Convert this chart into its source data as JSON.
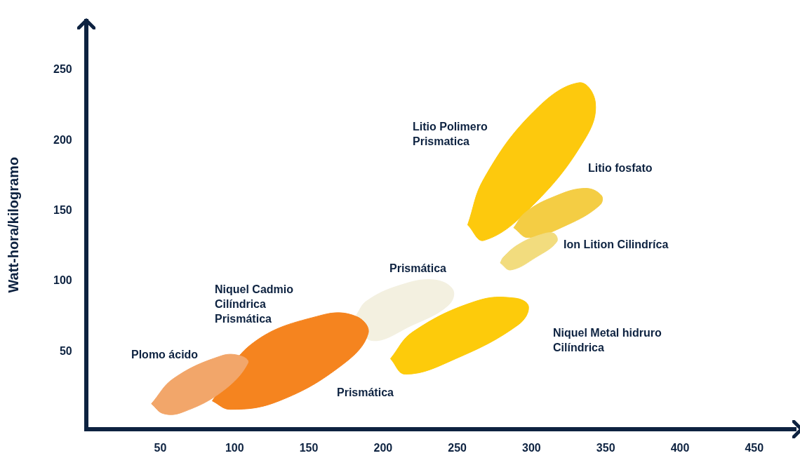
{
  "chart_data": {
    "type": "area",
    "ylabel": "Watt-hora/kilogramo",
    "xlim": [
      0,
      478
    ],
    "ylim": [
      -5,
      285
    ],
    "xticks": [
      50,
      100,
      150,
      200,
      250,
      300,
      350,
      400,
      450
    ],
    "yticks": [
      50,
      100,
      150,
      200,
      250
    ],
    "grid": false,
    "legend": false,
    "marker": "none",
    "series": [
      {
        "color": "#f3f0e0",
        "x": [
          182,
          192,
          220,
          244,
          247,
          234,
          211,
          189,
          182
        ],
        "values": [
          76,
          58,
          69,
          83,
          94,
          101,
          97,
          86,
          76
        ]
      },
      {
        "color": "#f5841f",
        "x": [
          85,
          97,
          130,
          173,
          190,
          182,
          159,
          111,
          85
        ],
        "values": [
          15,
          9,
          15,
          41,
          63,
          75,
          76,
          55,
          15
        ]
      },
      {
        "color": "#f2a66a",
        "x": [
          44,
          52,
          65,
          92,
          109,
          104,
          91,
          59,
          44
        ],
        "values": [
          13,
          6,
          7,
          22,
          42,
          47,
          47,
          31,
          13
        ]
      },
      {
        "color": "#fdcb0b",
        "x": [
          205,
          215,
          249,
          291,
          298,
          289,
          263,
          220,
          205
        ],
        "values": [
          45,
          34,
          45,
          69,
          82,
          88,
          86,
          64,
          45
        ]
      },
      {
        "color": "#fdc90d",
        "x": [
          257,
          268,
          301,
          336,
          343,
          332,
          301,
          268,
          257
        ],
        "values": [
          140,
          129,
          154,
          201,
          227,
          241,
          220,
          173,
          140
        ]
      },
      {
        "color": "#f4cd44",
        "x": [
          288,
          298,
          324,
          346,
          347,
          336,
          315,
          296,
          288
        ],
        "values": [
          138,
          131,
          140,
          154,
          161,
          166,
          160,
          149,
          138
        ]
      },
      {
        "color": "#f2dc7e",
        "x": [
          279,
          286,
          303,
          317,
          315,
          306,
          291,
          281,
          279
        ],
        "values": [
          113,
          108,
          117,
          128,
          134,
          133,
          126,
          117,
          113
        ]
      }
    ],
    "annotations": [
      "Litio Polimero\nPrismatica",
      "Litio fosfato",
      "Ion Lition Cilindríca",
      "Prismática",
      "Niquel Cadmio\nCilíndrica\nPrismática",
      "Plomo ácido",
      "Prismática",
      "Niquel Metal hidruro\nCilíndrica"
    ]
  }
}
